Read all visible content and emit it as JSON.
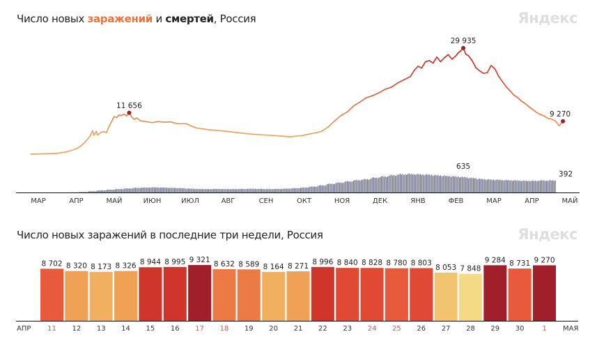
{
  "top": {
    "title_prefix": "Число новых ",
    "title_cases": "заражений",
    "title_and": " и ",
    "title_deaths": "смертей",
    "title_suffix": ", Россия",
    "logo": "Яндекс"
  },
  "bottom": {
    "title": "Число новых заражений в последние три недели, Россия",
    "logo": "Яндекс"
  },
  "chart_data": [
    {
      "type": "line",
      "title": "Число новых заражений и смертей, Россия",
      "x_unit": "days since 2020-03-01",
      "month_labels": [
        "МАР",
        "АПР",
        "МАЙ",
        "ИЮН",
        "ИЮЛ",
        "АВГ",
        "СЕН",
        "ОКТ",
        "НОЯ",
        "ДЕК",
        "ЯНВ",
        "ФЕВ",
        "МАР",
        "АПР",
        "МАЙ"
      ],
      "cases": {
        "name": "заражений",
        "points": [
          [
            4,
            0
          ],
          [
            24,
            200
          ],
          [
            30,
            500
          ],
          [
            35,
            900
          ],
          [
            40,
            1500
          ],
          [
            43,
            2100
          ],
          [
            47,
            3400
          ],
          [
            51,
            5100
          ],
          [
            53,
            6600
          ],
          [
            54,
            5300
          ],
          [
            56,
            6400
          ],
          [
            57,
            5400
          ],
          [
            60,
            6200
          ],
          [
            62,
            6300
          ],
          [
            64,
            6100
          ],
          [
            66,
            7800
          ],
          [
            68,
            9100
          ],
          [
            70,
            10600
          ],
          [
            72,
            10300
          ],
          [
            74,
            11000
          ],
          [
            76,
            10900
          ],
          [
            78,
            11300
          ],
          [
            80,
            10800
          ],
          [
            82,
            11656
          ],
          [
            84,
            10500
          ],
          [
            86,
            9800
          ],
          [
            88,
            10200
          ],
          [
            91,
            9400
          ],
          [
            95,
            9200
          ],
          [
            100,
            8900
          ],
          [
            105,
            9200
          ],
          [
            110,
            9000
          ],
          [
            115,
            9100
          ],
          [
            120,
            8600
          ],
          [
            127,
            8600
          ],
          [
            135,
            7400
          ],
          [
            145,
            6900
          ],
          [
            155,
            6600
          ],
          [
            165,
            6200
          ],
          [
            175,
            5800
          ],
          [
            185,
            5500
          ],
          [
            195,
            5300
          ],
          [
            203,
            5100
          ],
          [
            210,
            4900
          ],
          [
            215,
            5100
          ],
          [
            220,
            5300
          ],
          [
            225,
            5700
          ],
          [
            230,
            6000
          ],
          [
            235,
            6500
          ],
          [
            240,
            7700
          ],
          [
            245,
            9400
          ],
          [
            250,
            10900
          ],
          [
            255,
            11900
          ],
          [
            260,
            13600
          ],
          [
            265,
            14700
          ],
          [
            270,
            15900
          ],
          [
            275,
            16500
          ],
          [
            280,
            17300
          ],
          [
            285,
            18300
          ],
          [
            290,
            18900
          ],
          [
            295,
            20100
          ],
          [
            300,
            21000
          ],
          [
            305,
            21900
          ],
          [
            308,
            23600
          ],
          [
            311,
            24800
          ],
          [
            314,
            24300
          ],
          [
            317,
            26100
          ],
          [
            320,
            26400
          ],
          [
            323,
            25700
          ],
          [
            326,
            27400
          ],
          [
            329,
            26100
          ],
          [
            332,
            27200
          ],
          [
            335,
            28100
          ],
          [
            338,
            26800
          ],
          [
            341,
            27700
          ],
          [
            343,
            28600
          ],
          [
            345,
            29200
          ],
          [
            347,
            29935
          ],
          [
            349,
            28200
          ],
          [
            351,
            27800
          ],
          [
            354,
            26400
          ],
          [
            357,
            24400
          ],
          [
            360,
            23500
          ],
          [
            363,
            22800
          ],
          [
            366,
            23000
          ],
          [
            369,
            25000
          ],
          [
            372,
            24100
          ],
          [
            375,
            22000
          ],
          [
            378,
            20500
          ],
          [
            381,
            19000
          ],
          [
            384,
            17900
          ],
          [
            387,
            16700
          ],
          [
            390,
            16000
          ],
          [
            393,
            15000
          ],
          [
            396,
            14300
          ],
          [
            399,
            13400
          ],
          [
            402,
            12600
          ],
          [
            405,
            11800
          ],
          [
            408,
            11200
          ],
          [
            411,
            10800
          ],
          [
            414,
            10100
          ],
          [
            417,
            9900
          ],
          [
            420,
            9400
          ],
          [
            423,
            8000
          ],
          [
            426,
            9270
          ]
        ],
        "annotations": [
          {
            "x": 82,
            "value": 11656,
            "label": "11 656"
          },
          {
            "x": 347,
            "value": 29935,
            "label": "29 935"
          },
          {
            "x": 426,
            "value": 9270,
            "label": "9 270"
          }
        ],
        "colors": {
          "low": "#e9a55e",
          "high": "#c2372d"
        }
      },
      "deaths": {
        "name": "смертей",
        "start_day": 22,
        "weekly_values": [
          0,
          1,
          5,
          15,
          40,
          70,
          90,
          110,
          130,
          150,
          160,
          165,
          160,
          150,
          140,
          125,
          115,
          110,
          115,
          110,
          110,
          115,
          120,
          115,
          110,
          115,
          125,
          140,
          160,
          190,
          230,
          280,
          320,
          360,
          400,
          430,
          480,
          520,
          560,
          590,
          600,
          590,
          580,
          560,
          540,
          520,
          500,
          470,
          440,
          420,
          410,
          400,
          390,
          380,
          380,
          390,
          392
        ],
        "annotations": [
          {
            "x": 347,
            "value": 635,
            "label": "635"
          },
          {
            "x": 426,
            "value": 392,
            "label": "392"
          }
        ],
        "color": "#6b6e85"
      }
    },
    {
      "type": "bar",
      "title": "Число новых заражений в последние три недели, Россия",
      "month_start": "АПР",
      "month_end": "МАЯ",
      "categories": [
        "11",
        "12",
        "13",
        "14",
        "15",
        "16",
        "17",
        "18",
        "19",
        "20",
        "21",
        "22",
        "23",
        "24",
        "25",
        "26",
        "27",
        "28",
        "29",
        "30",
        "1"
      ],
      "values": [
        8702,
        8320,
        8173,
        8326,
        8944,
        8995,
        9321,
        8632,
        8589,
        8164,
        8271,
        8996,
        8840,
        8828,
        8780,
        8803,
        8053,
        7848,
        9284,
        8731,
        9270
      ],
      "labels": [
        "8 702",
        "8 320",
        "8 173",
        "8 326",
        "8 944",
        "8 995",
        "9 321",
        "8 632",
        "8 589",
        "8 164",
        "8 271",
        "8 996",
        "8 840",
        "8 828",
        "8 780",
        "8 803",
        "8 053",
        "7 848",
        "9 284",
        "8 731",
        "9 270"
      ],
      "bar_colors": [
        "#e85a3c",
        "#efa255",
        "#f0b060",
        "#efa255",
        "#d0352b",
        "#d0352b",
        "#a01f2a",
        "#ec7a45",
        "#ec7a45",
        "#f0b060",
        "#efa255",
        "#d0352b",
        "#e04a35",
        "#e04a35",
        "#e85a3c",
        "#e04a35",
        "#f2c470",
        "#f5da85",
        "#a01f2a",
        "#e85a3c",
        "#a01f2a"
      ],
      "holiday": [
        true,
        false,
        false,
        false,
        false,
        false,
        true,
        true,
        false,
        false,
        false,
        false,
        false,
        true,
        true,
        false,
        false,
        false,
        false,
        false,
        true
      ],
      "holiday_color": "#d9534f",
      "ylim": [
        0,
        9321
      ]
    }
  ]
}
